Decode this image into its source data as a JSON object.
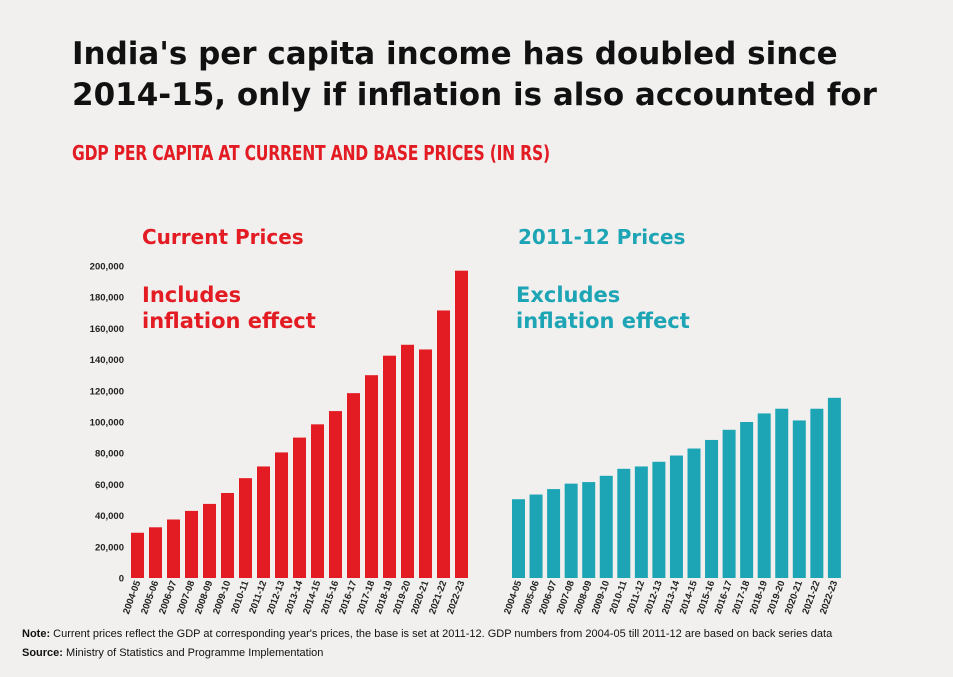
{
  "title_lines": [
    "India's per capita income has doubled since",
    "2014-15, only if inflation is also accounted for"
  ],
  "subtitle": "GDP PER CAPITA AT CURRENT AND BASE PRICES (IN RS)",
  "note": {
    "label": "Note:",
    "text": " Current prices reflect the GDP at corresponding year's prices, the base is set at 2011-12. GDP numbers from 2004-05 till 2011-12 are based on back series data"
  },
  "source": {
    "label": "Source:",
    "text": " Ministry of Statistics and Programme Implementation"
  },
  "colors": {
    "current": "#e31b23",
    "base": "#1ea5b5",
    "text": "#111111"
  },
  "chart_data": [
    {
      "type": "bar",
      "title": "Current Prices",
      "annotation": [
        "Includes",
        "inflation effect"
      ],
      "categories": [
        "2004-05",
        "2005-06",
        "2006-07",
        "2007-08",
        "2008-09",
        "2009-10",
        "2010-11",
        "2011-12",
        "2012-13",
        "2013-14",
        "2014-15",
        "2015-16",
        "2016-17",
        "2017-18",
        "2018-19",
        "2019-20",
        "2020-21",
        "2021-22",
        "2022-23"
      ],
      "values": [
        29000,
        32500,
        37500,
        43000,
        47500,
        54500,
        64000,
        71500,
        80500,
        90000,
        98500,
        107000,
        118500,
        130000,
        142500,
        149500,
        146500,
        171500,
        197000
      ],
      "ylim": [
        0,
        200000
      ],
      "yticks": [
        "0",
        "20,000",
        "40,000",
        "60,000",
        "80,000",
        "100,000",
        "120,000",
        "140,000",
        "160,000",
        "180,000",
        "200,000"
      ],
      "show_yaxis": true
    },
    {
      "type": "bar",
      "title": "2011-12 Prices",
      "annotation": [
        "Excludes",
        "inflation effect"
      ],
      "categories": [
        "2004-05",
        "2005-06",
        "2006-07",
        "2007-08",
        "2008-09",
        "2009-10",
        "2010-11",
        "2011-12",
        "2012-13",
        "2013-14",
        "2014-15",
        "2015-16",
        "2016-17",
        "2017-18",
        "2018-19",
        "2019-20",
        "2020-21",
        "2021-22",
        "2022-23"
      ],
      "values": [
        50500,
        53500,
        57000,
        60500,
        61500,
        65500,
        70000,
        71500,
        74500,
        78500,
        83000,
        88500,
        95000,
        100000,
        105500,
        108500,
        101000,
        108500,
        115500
      ],
      "ylim": [
        0,
        200000
      ],
      "show_yaxis": false
    }
  ]
}
